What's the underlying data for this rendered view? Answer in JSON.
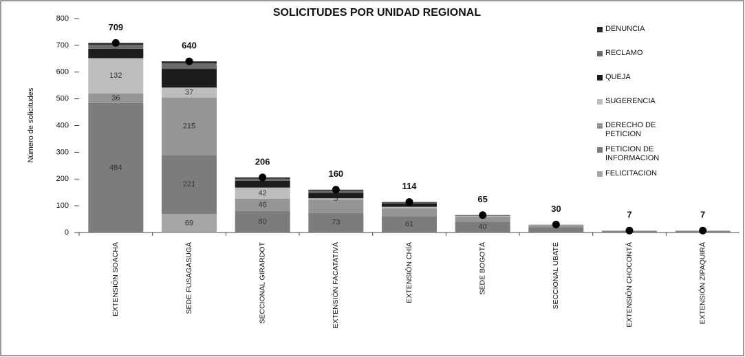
{
  "chart_data": {
    "type": "stacked_bar",
    "title": "SOLICITUDES POR UNIDAD REGIONAL",
    "y_label": "Número de solicitudes",
    "categories": [
      "EXTENSIÓN SOACHA",
      "SEDE FUSAGASUGÁ",
      "SECCIONAL GIRARDOT",
      "EXTENSIÓN FACATATIVÁ",
      "EXTENSIÓN CHÍA",
      "SEDE BOGOTÁ",
      "SECCIONAL UBATÉ",
      "EXTENSIÓN CHOCONTÁ",
      "EXTENSIÓN ZIPAQUIRÁ"
    ],
    "series": [
      {
        "name": "DENUNCIA",
        "color": "#2b2b2b",
        "values": [
          7,
          8,
          5,
          4,
          2,
          0,
          0,
          0,
          0
        ],
        "value_labels": [
          null,
          null,
          null,
          null,
          null,
          null,
          null,
          null,
          null
        ]
      },
      {
        "name": "RECLAMO",
        "color": "#6a6a6a",
        "values": [
          15,
          20,
          8,
          8,
          4,
          0,
          0,
          0,
          0
        ],
        "value_labels": [
          null,
          null,
          null,
          null,
          null,
          null,
          null,
          null,
          null
        ]
      },
      {
        "name": "QUEJA",
        "color": "#1c1c1c",
        "values": [
          35,
          70,
          25,
          20,
          12,
          2,
          0,
          0,
          0
        ],
        "value_labels": [
          null,
          null,
          null,
          null,
          null,
          null,
          null,
          null,
          null
        ]
      },
      {
        "name": "SUGERENCIA",
        "color": "#bdbdbd",
        "values": [
          132,
          37,
          42,
          5,
          5,
          3,
          2,
          0,
          0
        ],
        "value_labels": [
          "132",
          "37",
          "42",
          "5",
          null,
          null,
          null,
          null,
          null
        ]
      },
      {
        "name": "DERECHO DE PETICION",
        "color": "#959595",
        "values": [
          36,
          215,
          46,
          50,
          30,
          20,
          8,
          2,
          2
        ],
        "value_labels": [
          "36",
          "215",
          "46",
          null,
          null,
          null,
          null,
          null,
          null
        ]
      },
      {
        "name": "PETICION DE INFORMACION",
        "color": "#7c7c7c",
        "values": [
          484,
          221,
          80,
          73,
          61,
          40,
          20,
          5,
          5
        ],
        "value_labels": [
          "484",
          "221",
          "80",
          "73",
          "61",
          "40",
          null,
          null,
          null
        ]
      },
      {
        "name": "FELICITACION",
        "color": "#a5a5a5",
        "values": [
          0,
          69,
          0,
          0,
          0,
          0,
          0,
          0,
          0
        ],
        "value_labels": [
          null,
          "69",
          null,
          null,
          null,
          null,
          null,
          null,
          null
        ]
      }
    ],
    "totals": [
      709,
      640,
      206,
      160,
      114,
      65,
      30,
      7,
      7
    ],
    "ylim": [
      0,
      800
    ],
    "yticks": [
      0,
      100,
      200,
      300,
      400,
      500,
      600,
      700,
      800
    ]
  }
}
